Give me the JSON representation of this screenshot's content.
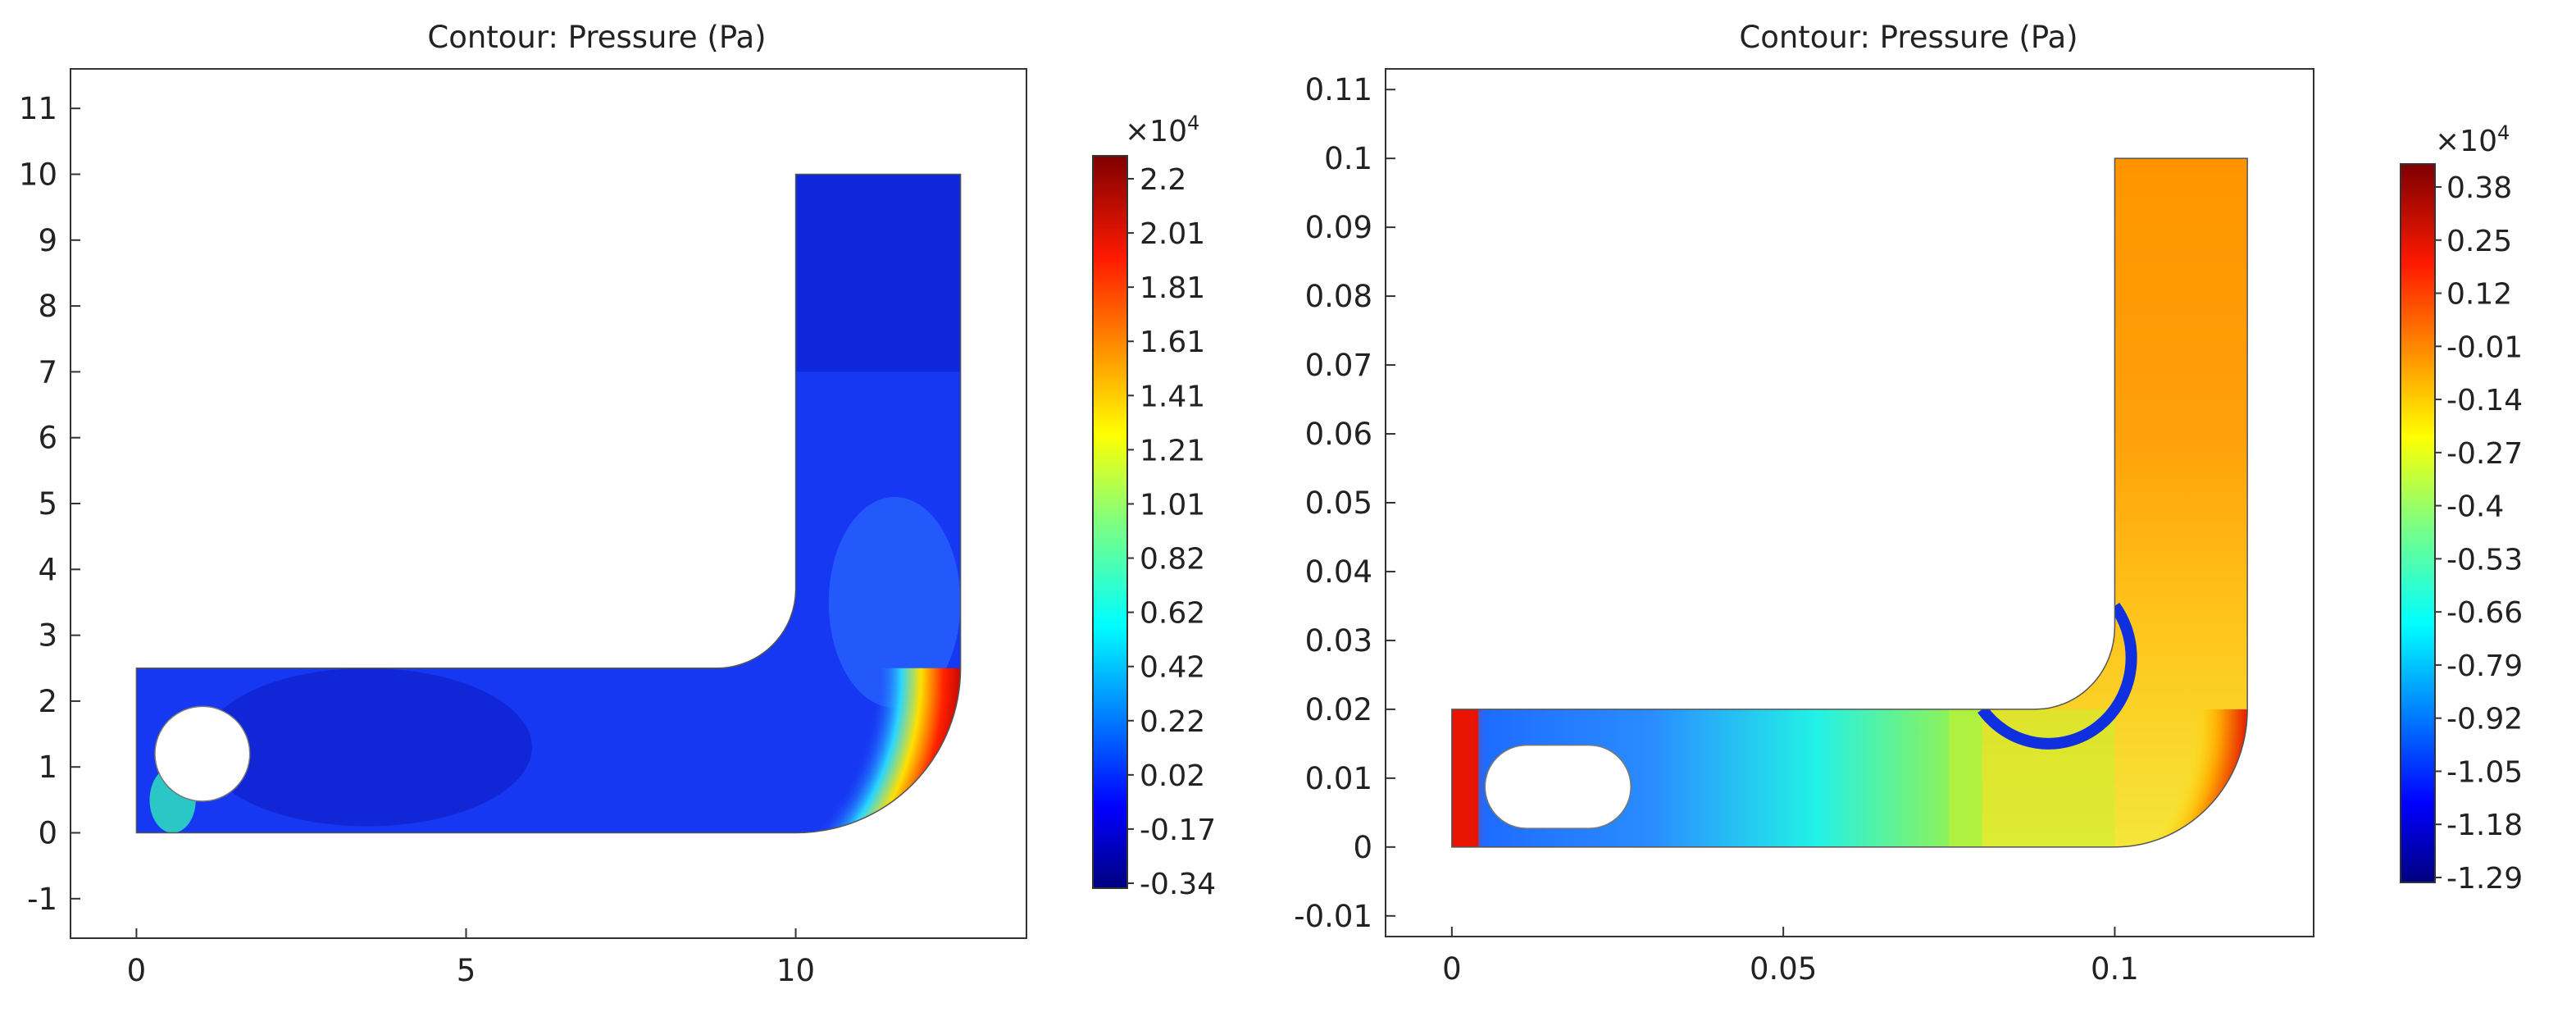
{
  "chart_data": [
    {
      "type": "heatmap",
      "title": "Contour: Pressure (Pa)",
      "x_ticks": [
        0,
        5,
        10
      ],
      "y_ticks": [
        -1,
        0,
        1,
        2,
        3,
        4,
        5,
        6,
        7,
        8,
        9,
        10,
        11
      ],
      "xlim": [
        -1,
        13.5
      ],
      "ylim": [
        -1.6,
        11.6
      ],
      "geometry": {
        "channel_height": 2.5,
        "horizontal_end_x": 10,
        "bend_outer_radius": 2.5,
        "inner_corner_radius": 1.2,
        "vertical_top_y": 10,
        "vertical_x_range": [
          10,
          12.5
        ],
        "obstacle": {
          "shape": "circle",
          "center": [
            1,
            1.2
          ],
          "radius": 0.72
        }
      },
      "colorbar": {
        "multiplier": "×10",
        "exponent": "4",
        "ticks": [
          "2.2",
          "2.01",
          "1.81",
          "1.61",
          "1.41",
          "1.21",
          "1.01",
          "0.82",
          "0.62",
          "0.42",
          "0.22",
          "0.02",
          "-0.17",
          "-0.34"
        ],
        "range": [
          -0.34,
          2.2
        ]
      }
    },
    {
      "type": "heatmap",
      "title": "Contour: Pressure (Pa)",
      "x_ticks": [
        "0",
        "0.05",
        "0.1"
      ],
      "y_ticks": [
        "-0.01",
        "0",
        "0.01",
        "0.02",
        "0.03",
        "0.04",
        "0.05",
        "0.06",
        "0.07",
        "0.08",
        "0.09",
        "0.1",
        "0.11"
      ],
      "xlim": [
        -0.01,
        0.13
      ],
      "ylim": [
        -0.013,
        0.113
      ],
      "geometry": {
        "channel_height": 0.02,
        "horizontal_end_x": 0.1,
        "bend_outer_radius": 0.02,
        "inner_corner_radius": 0.012,
        "vertical_top_y": 0.1,
        "vertical_x_range": [
          0.1,
          0.12
        ],
        "obstacle": {
          "shape": "stadium",
          "x_range": [
            0.005,
            0.027
          ],
          "y_range": [
            0.0027,
            0.0148
          ]
        }
      },
      "colorbar": {
        "multiplier": "×10",
        "exponent": "4",
        "ticks": [
          "0.38",
          "0.25",
          "0.12",
          "-0.01",
          "-0.14",
          "-0.27",
          "-0.4",
          "-0.53",
          "-0.66",
          "-0.79",
          "-0.92",
          "-1.05",
          "-1.18",
          "-1.29"
        ],
        "range": [
          -1.29,
          0.38
        ]
      }
    }
  ]
}
